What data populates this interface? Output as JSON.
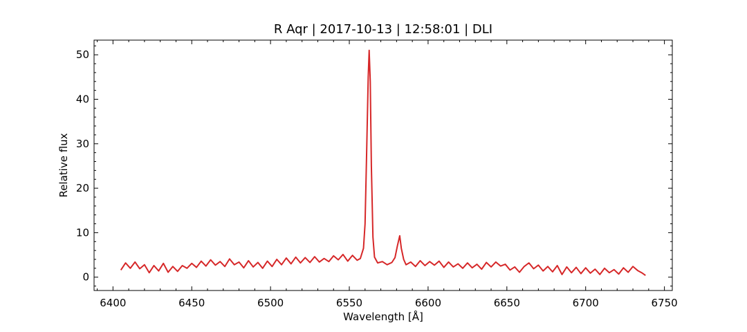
{
  "chart_data": {
    "type": "line",
    "title": "R Aqr | 2017-10-13 | 12:58:01 | DLI",
    "xlabel": "Wavelength [Å]",
    "ylabel": "Relative flux",
    "xlim": [
      6388,
      6755
    ],
    "ylim": [
      -3,
      53.3
    ],
    "xticks": [
      6400,
      6450,
      6500,
      6550,
      6600,
      6650,
      6700,
      6750
    ],
    "yticks": [
      0,
      10,
      20,
      30,
      40,
      50
    ],
    "grid": false,
    "line_color": "#d62728",
    "series": [
      {
        "x": [
          6405,
          6408,
          6411,
          6414,
          6417,
          6420,
          6423,
          6426,
          6429,
          6432,
          6435,
          6438,
          6441,
          6444,
          6447,
          6450,
          6453,
          6456,
          6459,
          6462,
          6465,
          6468,
          6471,
          6474,
          6477,
          6480,
          6483,
          6486,
          6489,
          6492,
          6495,
          6498,
          6501,
          6504,
          6507,
          6510,
          6513,
          6516,
          6519,
          6522,
          6525,
          6528,
          6531,
          6534,
          6537,
          6540,
          6543,
          6546,
          6549,
          6552,
          6555,
          6557,
          6559,
          6560,
          6561,
          6562,
          6562.6,
          6563.3,
          6564,
          6565,
          6566,
          6568,
          6571,
          6574,
          6577,
          6579,
          6580.5,
          6582,
          6583,
          6584.5,
          6586,
          6589,
          6592,
          6595,
          6598,
          6601,
          6604,
          6607,
          6610,
          6613,
          6616,
          6619,
          6622,
          6625,
          6628,
          6631,
          6634,
          6637,
          6640,
          6643,
          6646,
          6649,
          6652,
          6655,
          6658,
          6661,
          6664,
          6667,
          6670,
          6673,
          6676,
          6679,
          6682,
          6685,
          6688,
          6691,
          6694,
          6697,
          6700,
          6703,
          6706,
          6709,
          6712,
          6715,
          6718,
          6721,
          6724,
          6727,
          6730,
          6733,
          6736,
          6738
        ],
        "values": [
          1.6,
          3.2,
          2.0,
          3.4,
          1.9,
          2.8,
          1.0,
          2.6,
          1.4,
          3.1,
          1.1,
          2.4,
          1.3,
          2.6,
          2.0,
          3.1,
          2.2,
          3.6,
          2.5,
          3.9,
          2.7,
          3.5,
          2.4,
          4.1,
          2.8,
          3.4,
          2.1,
          3.7,
          2.3,
          3.3,
          2.0,
          3.6,
          2.4,
          4.0,
          2.8,
          4.3,
          3.0,
          4.5,
          3.2,
          4.4,
          3.3,
          4.6,
          3.4,
          4.2,
          3.5,
          4.8,
          3.9,
          5.1,
          3.6,
          4.9,
          3.8,
          4.2,
          6.5,
          12.0,
          28.0,
          45.0,
          51.0,
          44.0,
          25.0,
          9.0,
          4.5,
          3.2,
          3.5,
          2.8,
          3.3,
          4.4,
          7.0,
          9.3,
          6.5,
          4.0,
          2.8,
          3.4,
          2.4,
          3.7,
          2.6,
          3.5,
          2.7,
          3.6,
          2.2,
          3.4,
          2.3,
          3.0,
          2.0,
          3.2,
          2.1,
          2.9,
          1.8,
          3.3,
          2.3,
          3.4,
          2.5,
          2.9,
          1.6,
          2.3,
          1.1,
          2.4,
          3.2,
          1.9,
          2.7,
          1.4,
          2.4,
          1.2,
          2.6,
          0.6,
          2.3,
          1.0,
          2.2,
          0.8,
          2.1,
          0.9,
          1.8,
          0.6,
          2.0,
          1.0,
          1.7,
          0.7,
          2.1,
          1.1,
          2.4,
          1.5,
          0.9,
          0.4
        ]
      }
    ]
  }
}
